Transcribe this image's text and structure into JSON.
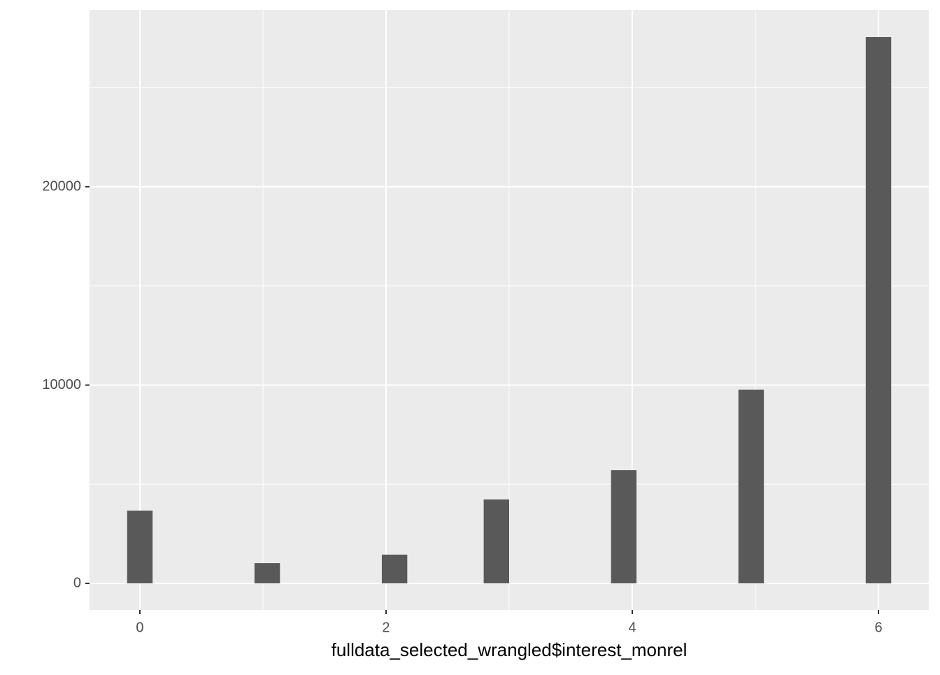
{
  "chart_data": {
    "type": "histogram",
    "xlabel": "fulldata_selected_wrangled$interest_monrel",
    "bins": [
      -0.1034,
      0.1034,
      0.3103,
      0.5172,
      0.7241,
      0.931,
      1.1379,
      1.3448,
      1.5517,
      1.7586,
      1.9655,
      2.1724,
      2.3793,
      2.5862,
      2.7931,
      3.0,
      3.2069,
      3.4138,
      3.6207,
      3.8276,
      4.0345,
      4.2414,
      4.4483,
      4.6552,
      4.8621,
      5.069,
      5.2759,
      5.4828,
      5.6897,
      5.8966,
      6.1034
    ],
    "values": [
      3670,
      0,
      0,
      0,
      0,
      1020,
      0,
      0,
      0,
      0,
      1450,
      0,
      0,
      0,
      4230,
      0,
      0,
      0,
      0,
      5710,
      0,
      0,
      0,
      0,
      9770,
      0,
      0,
      0,
      0,
      27550
    ],
    "color": "#595959",
    "xlim": [
      -0.409,
      6.409
    ],
    "xticks": [
      0,
      2,
      4,
      6
    ],
    "ylim": [
      -1340,
      28925
    ],
    "yticks": [
      0,
      10000,
      20000
    ],
    "grid": true
  }
}
